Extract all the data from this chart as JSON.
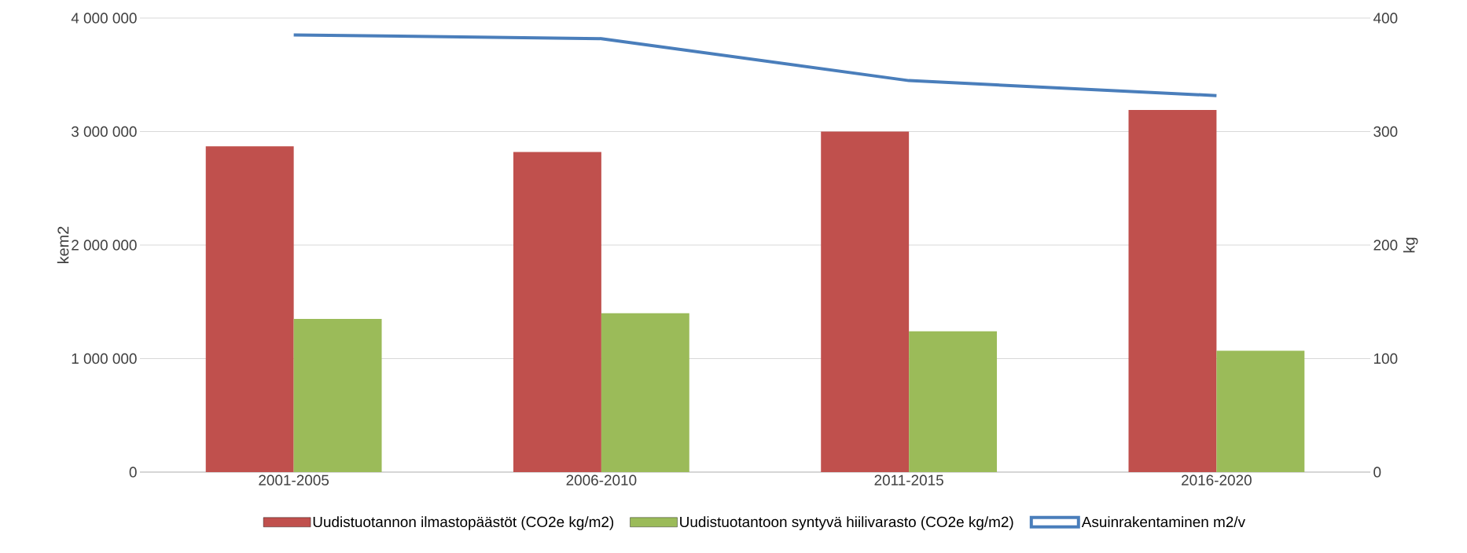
{
  "chart_data": {
    "type": "bar",
    "categories": [
      "2001-2005",
      "2006-2010",
      "2011-2015",
      "2016-2020"
    ],
    "series": [
      {
        "name": "Uudistuotannon ilmastopäästöt (CO2e kg/m2)",
        "color": "#c0504d",
        "values": [
          287,
          282,
          300,
          319
        ],
        "axis": "y2"
      },
      {
        "name": "Uudistuotantoon syntyvä hiilivarasto (CO2e kg/m2)",
        "color": "#9bbb59",
        "values": [
          135,
          140,
          124,
          107
        ],
        "axis": "y2"
      },
      {
        "name": "Asuinrakentaminen m2/v",
        "color": "#4a7ebb",
        "values": [
          3852000,
          3819000,
          3449000,
          3317000
        ],
        "type": "line",
        "axis": "y"
      }
    ],
    "ylabel": "kem2",
    "y2label": "kg",
    "ylim": [
      0,
      4000000
    ],
    "yticks": [
      0,
      {
        "value": 1000000,
        "label": "1 000 000"
      },
      {
        "value": 2000000,
        "label": "2 000 000"
      },
      {
        "value": 3000000,
        "label": "3 000 000"
      },
      {
        "value": 4000000,
        "label": "4 000 000"
      }
    ],
    "y2lim": [
      0,
      400
    ],
    "y2ticks": [
      0,
      100,
      200,
      300,
      400
    ],
    "grid": "y",
    "legend": "bottom"
  }
}
